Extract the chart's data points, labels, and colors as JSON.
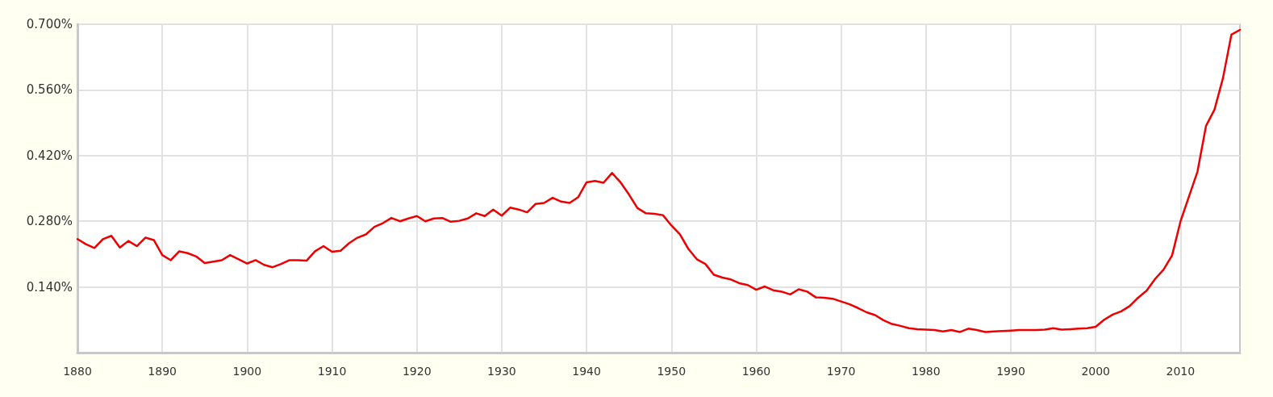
{
  "chart_data": {
    "type": "line",
    "xlim": [
      1880,
      2017
    ],
    "xticks": [
      1880,
      1890,
      1900,
      1910,
      1920,
      1930,
      1940,
      1950,
      1960,
      1970,
      1980,
      1990,
      2000,
      2010
    ],
    "ylim": [
      0,
      0.7
    ],
    "yticks": [
      {
        "value": 0.14,
        "label": "0.140%"
      },
      {
        "value": 0.28,
        "label": "0.280%"
      },
      {
        "value": 0.42,
        "label": "0.420%"
      },
      {
        "value": 0.56,
        "label": "0.560%"
      },
      {
        "value": 0.7,
        "label": "0.700%"
      }
    ],
    "grid": true,
    "marker": "none",
    "line_style": "solid",
    "series": [
      {
        "color": "#ee0000",
        "x": [
          1880,
          1881,
          1882,
          1883,
          1884,
          1885,
          1886,
          1887,
          1888,
          1889,
          1890,
          1891,
          1892,
          1893,
          1894,
          1895,
          1896,
          1897,
          1898,
          1899,
          1900,
          1901,
          1902,
          1903,
          1904,
          1905,
          1906,
          1907,
          1908,
          1909,
          1910,
          1911,
          1912,
          1913,
          1914,
          1915,
          1916,
          1917,
          1918,
          1919,
          1920,
          1921,
          1922,
          1923,
          1924,
          1925,
          1926,
          1927,
          1928,
          1929,
          1930,
          1931,
          1932,
          1933,
          1934,
          1935,
          1936,
          1937,
          1938,
          1939,
          1940,
          1941,
          1942,
          1943,
          1944,
          1945,
          1946,
          1947,
          1948,
          1949,
          1950,
          1951,
          1952,
          1953,
          1954,
          1955,
          1956,
          1957,
          1958,
          1959,
          1960,
          1961,
          1962,
          1963,
          1964,
          1965,
          1966,
          1967,
          1968,
          1969,
          1970,
          1971,
          1972,
          1973,
          1974,
          1975,
          1976,
          1977,
          1978,
          1979,
          1980,
          1981,
          1982,
          1983,
          1984,
          1985,
          1986,
          1987,
          1988,
          1989,
          1990,
          1991,
          1992,
          1993,
          1994,
          1995,
          1996,
          1997,
          1998,
          1999,
          2000,
          2001,
          2002,
          2003,
          2004,
          2005,
          2006,
          2007,
          2008,
          2009,
          2010,
          2011,
          2012,
          2013,
          2014,
          2015,
          2016,
          2017
        ],
        "values": [
          0.242,
          0.231,
          0.223,
          0.242,
          0.249,
          0.224,
          0.238,
          0.227,
          0.245,
          0.24,
          0.208,
          0.197,
          0.216,
          0.212,
          0.205,
          0.191,
          0.194,
          0.197,
          0.208,
          0.199,
          0.19,
          0.197,
          0.187,
          0.182,
          0.189,
          0.197,
          0.197,
          0.196,
          0.216,
          0.227,
          0.215,
          0.217,
          0.233,
          0.245,
          0.252,
          0.268,
          0.276,
          0.287,
          0.28,
          0.286,
          0.291,
          0.28,
          0.286,
          0.287,
          0.279,
          0.281,
          0.286,
          0.297,
          0.291,
          0.305,
          0.292,
          0.309,
          0.305,
          0.299,
          0.317,
          0.319,
          0.33,
          0.322,
          0.319,
          0.331,
          0.363,
          0.366,
          0.362,
          0.383,
          0.363,
          0.337,
          0.308,
          0.297,
          0.296,
          0.293,
          0.271,
          0.252,
          0.221,
          0.199,
          0.189,
          0.166,
          0.16,
          0.156,
          0.148,
          0.144,
          0.134,
          0.141,
          0.133,
          0.13,
          0.124,
          0.135,
          0.13,
          0.118,
          0.117,
          0.115,
          0.109,
          0.103,
          0.095,
          0.086,
          0.08,
          0.069,
          0.061,
          0.057,
          0.052,
          0.05,
          0.049,
          0.048,
          0.045,
          0.048,
          0.044,
          0.051,
          0.048,
          0.044,
          0.045,
          0.046,
          0.047,
          0.048,
          0.048,
          0.048,
          0.049,
          0.052,
          0.049,
          0.05,
          0.051,
          0.052,
          0.055,
          0.07,
          0.081,
          0.088,
          0.099,
          0.117,
          0.132,
          0.157,
          0.177,
          0.207,
          0.28,
          0.333,
          0.386,
          0.483,
          0.518,
          0.585,
          0.678,
          0.688
        ]
      }
    ]
  }
}
